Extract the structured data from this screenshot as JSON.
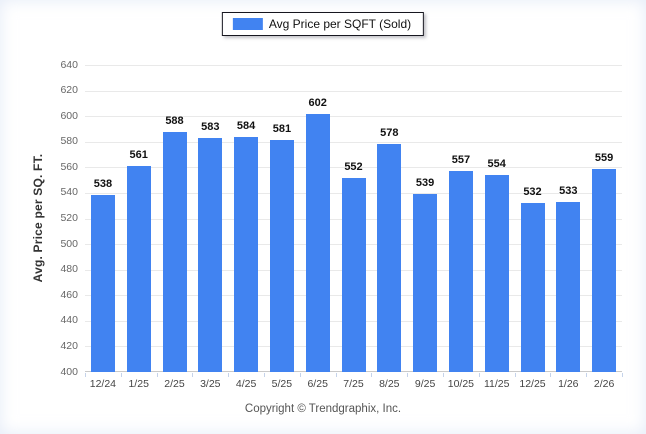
{
  "chart_data": {
    "type": "bar",
    "title": "Avg Price per SQFT (Sold)",
    "categories": [
      "12/24",
      "1/25",
      "2/25",
      "3/25",
      "4/25",
      "5/25",
      "6/25",
      "7/25",
      "8/25",
      "9/25",
      "10/25",
      "11/25",
      "12/25",
      "1/26",
      "2/26"
    ],
    "values": [
      538,
      561,
      588,
      583,
      584,
      581,
      602,
      552,
      578,
      539,
      557,
      554,
      532,
      533,
      559
    ],
    "xlabel": "",
    "ylabel": "Avg. Price per SQ. FT.",
    "ylim": [
      400,
      640
    ],
    "ytick_step": 20,
    "grid": true,
    "legend_position": "top-center"
  },
  "legend": {
    "label": "Avg Price per SQFT (Sold)"
  },
  "footer": {
    "copyright": "Copyright © Trendgraphix, Inc."
  },
  "colors": {
    "bar": "#4183f1",
    "grid": "#e9e9e9",
    "axis": "#c9c9c9",
    "tick": "#c5d3ea",
    "value_label": "#111111",
    "y_label": "#666666",
    "x_label": "#444444"
  }
}
